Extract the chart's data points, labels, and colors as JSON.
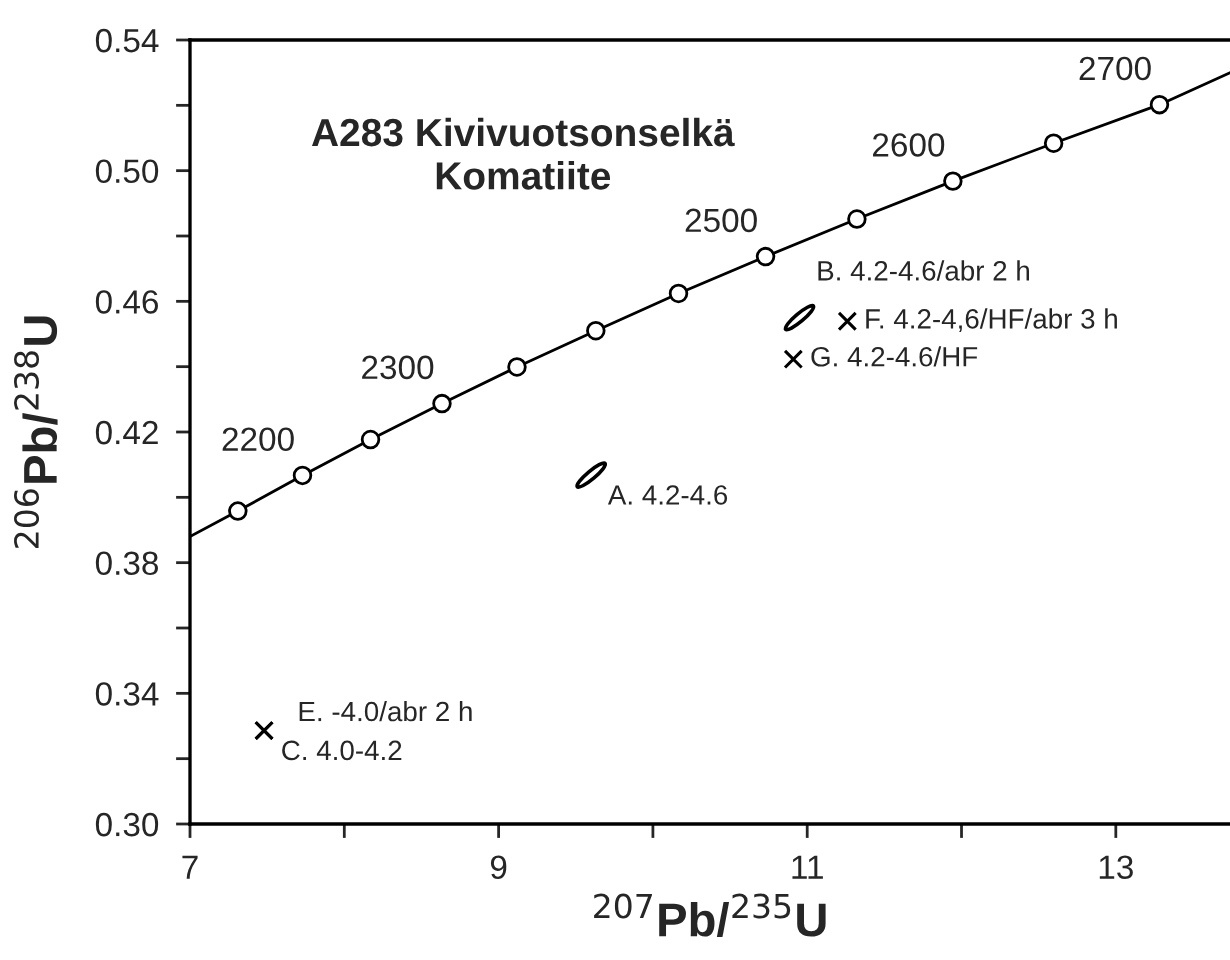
{
  "chart_data": {
    "type": "scatter",
    "title": "A283 Kivivuotsonselkä\nKomatiite",
    "xlabel": "$^{207}$Pb/$^{235}$U",
    "ylabel": "$^{206}$Pb/$^{238}$U",
    "xlim": [
      7,
      13.74
    ],
    "ylim": [
      0.3,
      0.54
    ],
    "xticks": [
      7,
      {
        "value": 8,
        "label": null
      },
      9,
      {
        "value": 10,
        "label": null
      },
      11,
      {
        "value": 12,
        "label": null
      },
      13
    ],
    "yticks": [
      {
        "value": 0.3,
        "label": "0.30"
      },
      {
        "value": 0.32,
        "label": null
      },
      {
        "value": 0.34,
        "label": "0.34"
      },
      {
        "value": 0.36,
        "label": null
      },
      {
        "value": 0.38,
        "label": "0.38"
      },
      {
        "value": 0.4,
        "label": null
      },
      {
        "value": 0.42,
        "label": "0.42"
      },
      {
        "value": 0.44,
        "label": null
      },
      {
        "value": 0.46,
        "label": "0.46"
      },
      {
        "value": 0.48,
        "label": null
      },
      {
        "value": 0.5,
        "label": "0.50"
      },
      {
        "value": 0.52,
        "label": null
      },
      {
        "value": 0.54,
        "label": "0.54"
      }
    ],
    "grid": false,
    "legend": false,
    "series": [
      {
        "type": "line",
        "color": "#000000",
        "marker": "none",
        "x": [
          7.0,
          7.31,
          7.729,
          8.17,
          8.633,
          9.119,
          9.63,
          10.166,
          10.73,
          11.322,
          11.944,
          12.597,
          13.283,
          13.74
        ],
        "values": [
          0.388,
          0.3958,
          0.4067,
          0.4177,
          0.4287,
          0.4399,
          0.451,
          0.4624,
          0.4737,
          0.4852,
          0.4968,
          0.5084,
          0.5202,
          0.53
        ]
      },
      {
        "type": "scatter",
        "color": "#000000",
        "marker": "circle",
        "x": [
          7.31,
          7.729,
          8.17,
          8.633,
          9.119,
          9.63,
          10.166,
          10.73,
          11.322,
          11.944,
          12.597,
          13.283
        ],
        "values": [
          0.3958,
          0.4067,
          0.4177,
          0.4287,
          0.4399,
          0.451,
          0.4624,
          0.4737,
          0.4852,
          0.4968,
          0.5084,
          0.5202
        ]
      },
      {
        "color": "#000000",
        "x": [
          9.6,
          10.95
        ],
        "values": [
          0.4068,
          0.455
        ]
      },
      {
        "color": "#000000",
        "marker": "cross",
        "x": [
          11.26,
          10.91,
          7.48,
          7.48
        ],
        "values": [
          0.4539,
          0.4423,
          0.3286,
          0.3286
        ]
      }
    ],
    "annotations": [
      {
        "text": "2200",
        "x": 7.729,
        "y": 0.4067
      },
      {
        "text": "2300",
        "x": 8.633,
        "y": 0.4287
      },
      {
        "text": "2500",
        "x": 10.73,
        "y": 0.4737
      },
      {
        "text": "2600",
        "x": 11.944,
        "y": 0.4968
      },
      {
        "text": "2700",
        "x": 13.283,
        "y": 0.5202
      },
      {
        "text": "A. 4.2-4.6",
        "x": 9.6,
        "y": 0.4068
      },
      {
        "text": "B. 4.2-4.6/abr 2 h",
        "x": 10.95,
        "y": 0.455
      },
      {
        "text": "F. 4.2-4,6/HF/abr 3 h",
        "x": 11.26,
        "y": 0.4539
      },
      {
        "text": "G. 4.2-4.6/HF",
        "x": 10.91,
        "y": 0.4423
      },
      {
        "text": "E. -4.0/abr 2 h",
        "x": 7.48,
        "y": 0.3286
      },
      {
        "text": "C. 4.0-4.2",
        "x": 7.48,
        "y": 0.3286
      }
    ]
  }
}
